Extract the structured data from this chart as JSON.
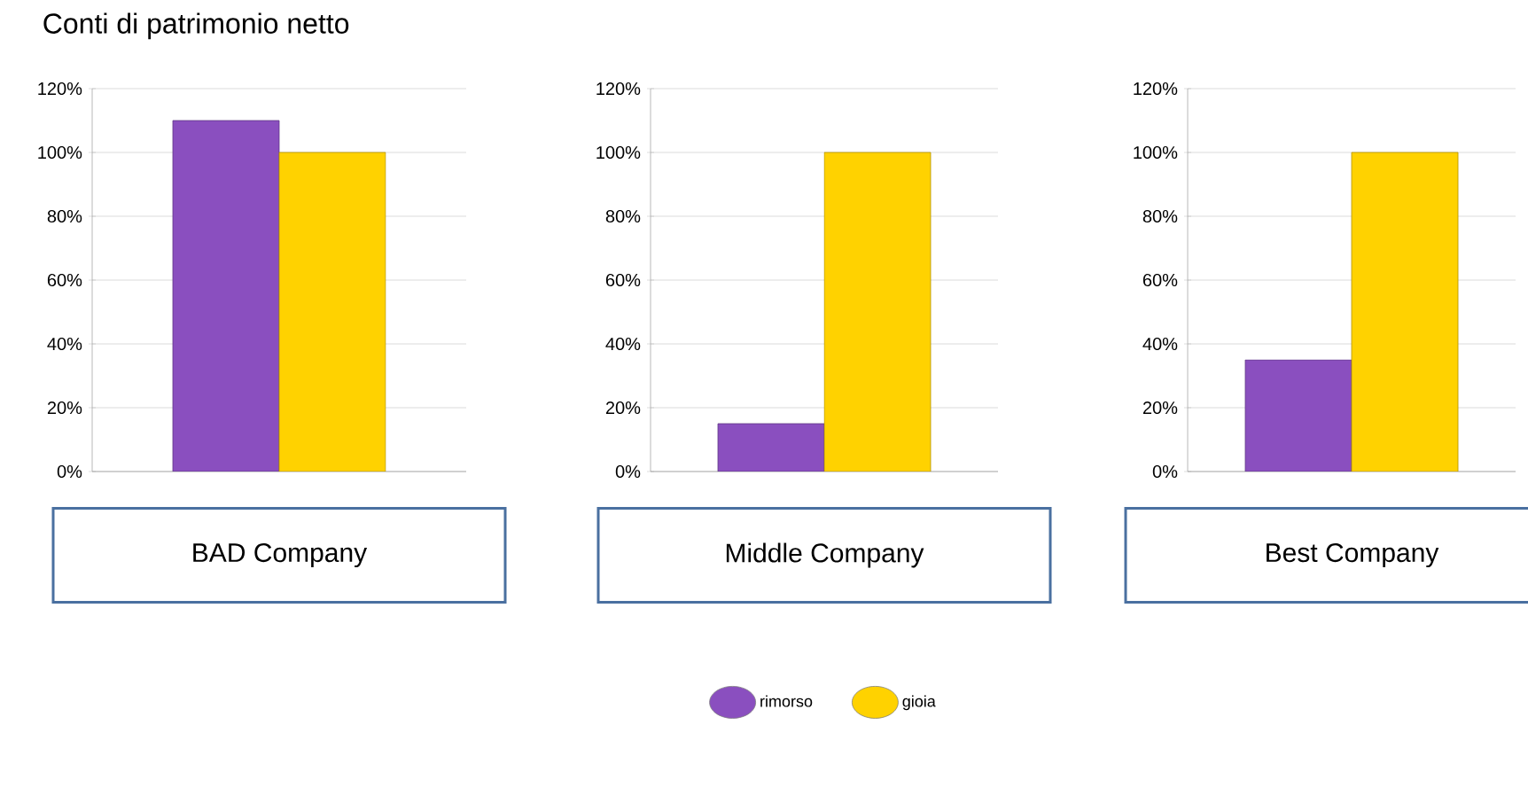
{
  "chart_data": [
    {
      "type": "bar",
      "title": "Conti di patrimonio netto",
      "categories": [
        "BAD Company"
      ],
      "series": [
        {
          "color": "#8a4fbf",
          "values": [
            110
          ]
        },
        {
          "color": "#ffd200",
          "values": [
            100
          ]
        }
      ],
      "ylim": [
        0,
        120
      ],
      "yticks": [
        {
          "value": 0,
          "label": "0%"
        },
        {
          "value": 20,
          "label": "20%"
        },
        {
          "value": 40,
          "label": "40%"
        },
        {
          "value": 60,
          "label": "60%"
        },
        {
          "value": 80,
          "label": "80%"
        },
        {
          "value": 100,
          "label": "100%"
        },
        {
          "value": 120,
          "label": "120%"
        }
      ],
      "grid": "y"
    },
    {
      "type": "bar",
      "categories": [
        "Middle Company"
      ],
      "series": [
        {
          "name": "rimorso",
          "color": "#8a4fbf",
          "values": [
            15
          ]
        },
        {
          "name": "gioia",
          "color": "#ffd200",
          "values": [
            100
          ]
        }
      ],
      "ylim": [
        0,
        120
      ],
      "yticks": [
        {
          "value": 0,
          "label": "0%"
        },
        {
          "value": 20,
          "label": "20%"
        },
        {
          "value": 40,
          "label": "40%"
        },
        {
          "value": 60,
          "label": "60%"
        },
        {
          "value": 80,
          "label": "80%"
        },
        {
          "value": 100,
          "label": "100%"
        },
        {
          "value": 120,
          "label": "120%"
        }
      ],
      "grid": "y",
      "legend": "bottom"
    },
    {
      "type": "bar",
      "categories": [
        "Best Company"
      ],
      "series": [
        {
          "color": "#8a4fbf",
          "values": [
            35
          ]
        },
        {
          "color": "#ffd200",
          "values": [
            100
          ]
        }
      ],
      "ylim": [
        0,
        120
      ],
      "yticks": [
        {
          "value": 0,
          "label": "0%"
        },
        {
          "value": 20,
          "label": "20%"
        },
        {
          "value": 40,
          "label": "40%"
        },
        {
          "value": 60,
          "label": "60%"
        },
        {
          "value": 80,
          "label": "80%"
        },
        {
          "value": 100,
          "label": "100%"
        },
        {
          "value": 120,
          "label": "120%"
        }
      ],
      "grid": "y"
    }
  ]
}
